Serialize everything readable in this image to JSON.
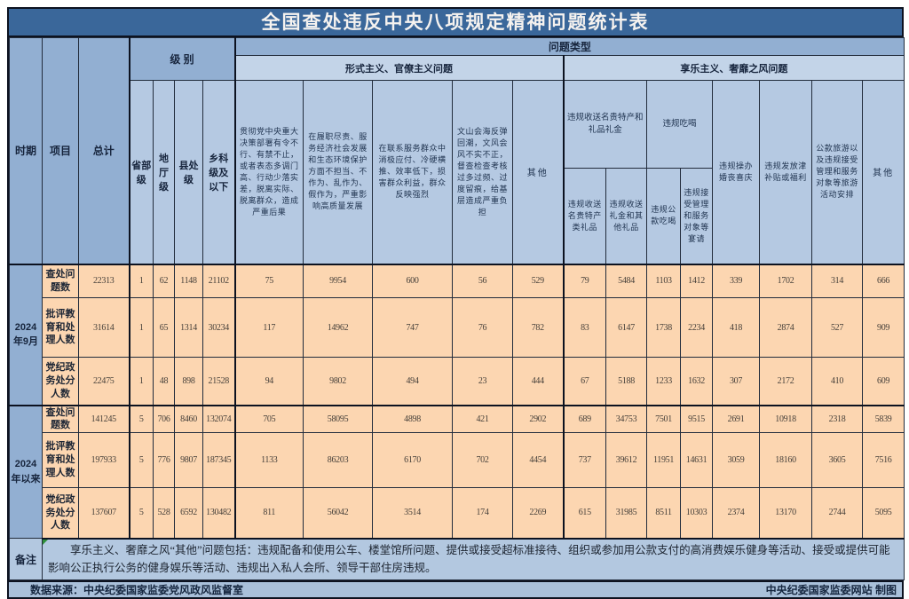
{
  "title": "全国查处违反中央八项规定精神问题统计表",
  "header": {
    "period": "时期",
    "item": "项目",
    "total": "总计",
    "level": "级 别",
    "problem_type": "问题类型",
    "formalism_group": "形式主义、官僚主义问题",
    "hedonism_group": "享乐主义、奢靡之风问题",
    "levels": [
      "省部级",
      "地厅级",
      "县处级",
      "乡科级及以下"
    ],
    "formalism_cols": [
      "贯彻党中央重大决策部署有令不行、有禁不止，或者表态多调门高、行动少落实差，脱离实际、脱离群众，造成严重后果",
      "在履职尽责、服务经济社会发展和生态环境保护方面不担当、不作为、乱作为、假作为，严重影响高质量发展",
      "在联系服务群众中消极应付、冷硬横推、效率低下，损害群众利益，群众反映强烈",
      "文山会海反弹回潮，文风会风不实不正，督查检查考核过多过频、过度留痕，给基层造成严重负担",
      "其他"
    ],
    "hedonism_parent_gifts": "违规收送名贵特产和礼品礼金",
    "hedonism_parent_dining": "违规吃喝",
    "hedonism_cols": [
      "违规收送名贵特产类礼品",
      "违规收送礼金和其他礼品",
      "违规公款吃喝",
      "违规接受管理和服务对象等宴请",
      "违规操办婚丧喜庆",
      "违规发放津补贴或福利",
      "公款旅游以及违规接受管理和服务对象等旅游活动安排",
      "其他"
    ]
  },
  "row_groups": [
    {
      "period": "2024年9月",
      "rows": [
        {
          "label": "查处问题数",
          "values": [
            22313,
            1,
            62,
            1148,
            21102,
            75,
            9954,
            600,
            56,
            529,
            79,
            5484,
            1103,
            1412,
            339,
            1702,
            314,
            666
          ]
        },
        {
          "label": "批评教育和处理人数",
          "values": [
            31614,
            1,
            65,
            1314,
            30234,
            117,
            14962,
            747,
            76,
            782,
            83,
            6147,
            1738,
            2234,
            418,
            2874,
            527,
            909
          ]
        },
        {
          "label": "党纪政务处分人数",
          "values": [
            22475,
            1,
            48,
            898,
            21528,
            94,
            9802,
            494,
            23,
            444,
            67,
            5188,
            1233,
            1632,
            307,
            2172,
            410,
            609
          ]
        }
      ]
    },
    {
      "period": "2024年以来",
      "rows": [
        {
          "label": "查处问题数",
          "values": [
            141245,
            5,
            706,
            8460,
            132074,
            705,
            58095,
            4898,
            421,
            2902,
            689,
            34753,
            7501,
            9515,
            2691,
            10918,
            2318,
            5839
          ]
        },
        {
          "label": "批评教育和处理人数",
          "values": [
            197933,
            5,
            776,
            9807,
            187345,
            1133,
            86203,
            6170,
            702,
            4454,
            737,
            39612,
            11951,
            14631,
            3059,
            18160,
            3605,
            7516
          ]
        },
        {
          "label": "党纪政务处分人数",
          "values": [
            137607,
            5,
            528,
            6592,
            130482,
            811,
            56042,
            3514,
            174,
            2269,
            615,
            31985,
            8511,
            10303,
            2374,
            13170,
            2744,
            5095
          ]
        }
      ]
    }
  ],
  "notes": {
    "label": "备注",
    "text": "享乐主义、奢靡之风“其他”问题包括：违规配备和使用公车、楼堂馆所问题、提供或接受超标准接待、组织或参加用公款支付的高消费娱乐健身等活动、接受或提供可能影响公正执行公务的健身娱乐等活动、违规出入私人会所、领导干部住房违规。"
  },
  "footer": {
    "source": "数据来源：中央纪委国家监委党风政风监督室",
    "credit": "中央纪委国家监委网站 制图"
  },
  "colors": {
    "title_bar": "#3a679a",
    "title_text": "#f5f2ef",
    "header_dark_blue": "#92afd2",
    "header_light_blue": "#c3d4e8",
    "subheader_blue": "#b5c9e2",
    "data_cell_peach": "#fcd6b1",
    "notes_bg": "#b3c8e0",
    "footer_bg": "#a9c0da",
    "border": "#0c1220"
  }
}
